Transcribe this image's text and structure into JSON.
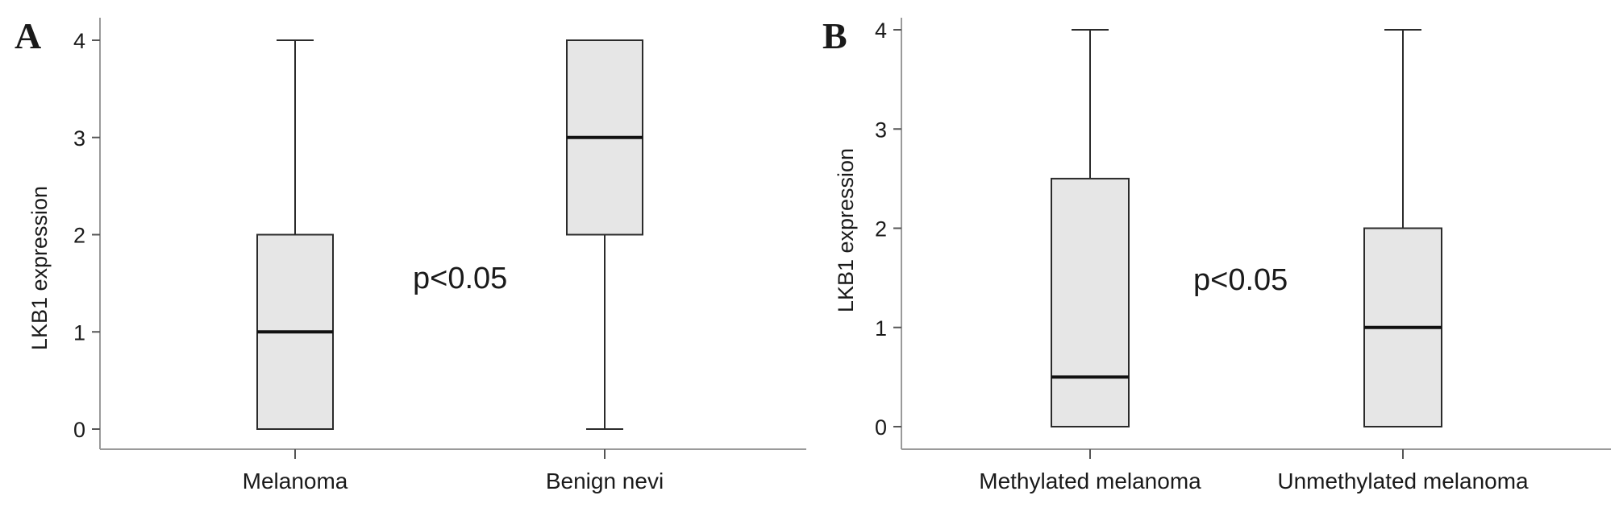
{
  "chart_data": [
    {
      "type": "box",
      "panel": "A",
      "title": "",
      "xlabel": "",
      "ylabel": "LKB1 expression",
      "ylim": [
        0,
        4
      ],
      "yticks": [
        "0",
        "1",
        "2",
        "3",
        "4"
      ],
      "categories": [
        "Melanoma",
        "Benign nevi"
      ],
      "boxes": [
        {
          "category": "Melanoma",
          "min": 0,
          "q1": 0,
          "median": 1,
          "q3": 2,
          "max": 4
        },
        {
          "category": "Benign nevi",
          "min": 0,
          "q1": 2,
          "median": 3,
          "q3": 4,
          "max": 4
        }
      ],
      "annotation": "p<0.05",
      "box_color": "#e6e6e6",
      "grid": false
    },
    {
      "type": "box",
      "panel": "B",
      "title": "",
      "xlabel": "",
      "ylabel": "LKB1 expression",
      "ylim": [
        0,
        4
      ],
      "yticks": [
        "0",
        "1",
        "2",
        "3",
        "4"
      ],
      "categories": [
        "Methylated melanoma",
        "Unmethylated melanoma"
      ],
      "boxes": [
        {
          "category": "Methylated melanoma",
          "min": 0,
          "q1": 0,
          "median": 0.5,
          "q3": 2.5,
          "max": 4
        },
        {
          "category": "Unmethylated melanoma",
          "min": 0,
          "q1": 0,
          "median": 1,
          "q3": 2,
          "max": 4
        }
      ],
      "annotation": "p<0.05",
      "box_color": "#e6e6e6",
      "grid": false
    }
  ]
}
